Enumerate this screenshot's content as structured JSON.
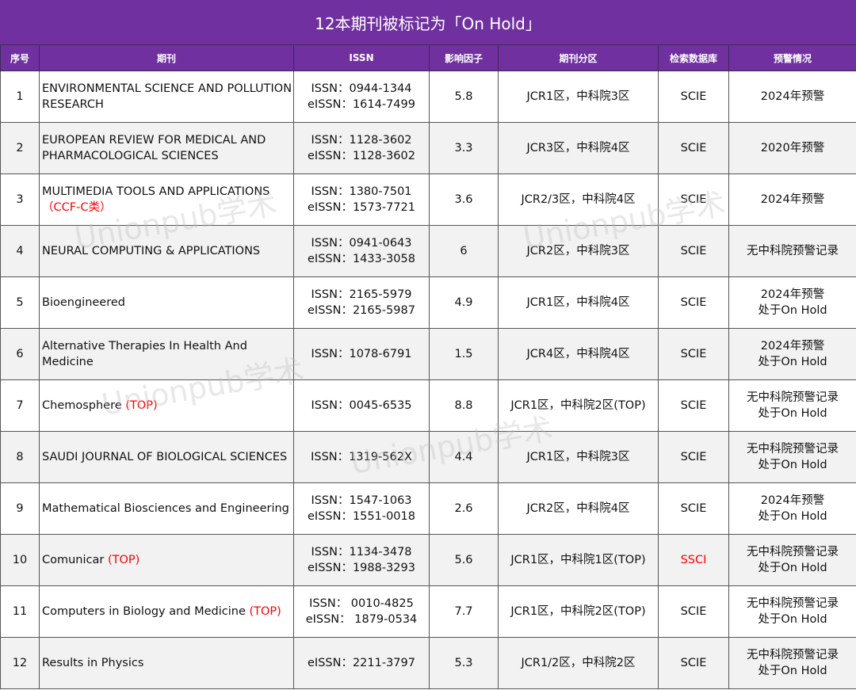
{
  "title": "12本期刊被标记为「On Hold」",
  "headers": {
    "no": "序号",
    "journal": "期刊",
    "issn": "ISSN",
    "impact": "影响因子",
    "zone": "期刊分区",
    "database": "检索数据库",
    "warning": "预警情况"
  },
  "rows": [
    {
      "no": "1",
      "journal": "ENVIRONMENTAL SCIENCE AND POLLUTION RESEARCH",
      "tag": "",
      "issn": "ISSN：0944-1344",
      "eissn": "eISSN：1614-7499",
      "impact": "5.8",
      "zone": "JCR1区，中科院3区",
      "database": "SCIE",
      "warning1": "2024年预警",
      "warning2": ""
    },
    {
      "no": "2",
      "journal": "EUROPEAN REVIEW FOR MEDICAL AND PHARMACOLOGICAL SCIENCES",
      "tag": "",
      "issn": "ISSN：1128-3602",
      "eissn": "eISSN：1128-3602",
      "impact": "3.3",
      "zone": "JCR3区，中科院4区",
      "database": "SCIE",
      "warning1": "2020年预警",
      "warning2": ""
    },
    {
      "no": "3",
      "journal": "MULTIMEDIA TOOLS AND APPLICATIONS",
      "tag": "（CCF-C类）",
      "issn": "ISSN：1380-7501",
      "eissn": "eISSN：1573-7721",
      "impact": "3.6",
      "zone": "JCR2/3区，中科院4区",
      "database": "SCIE",
      "warning1": "2024年预警",
      "warning2": ""
    },
    {
      "no": "4",
      "journal": "NEURAL COMPUTING & APPLICATIONS",
      "tag": "",
      "issn": "ISSN：0941-0643",
      "eissn": "eISSN：1433-3058",
      "impact": "6",
      "zone": "JCR2区，中科院3区",
      "database": "SCIE",
      "warning1": "无中科院预警记录",
      "warning2": ""
    },
    {
      "no": "5",
      "journal": "Bioengineered",
      "tag": "",
      "issn": "ISSN：2165-5979",
      "eissn": "eISSN：2165-5987",
      "impact": "4.9",
      "zone": "JCR1区，中科院4区",
      "database": "SCIE",
      "warning1": "2024年预警",
      "warning2": "处于On Hold"
    },
    {
      "no": "6",
      "journal": "Alternative Therapies In Health And Medicine",
      "tag": "",
      "issn": "ISSN：1078-6791",
      "eissn": "",
      "impact": "1.5",
      "zone": "JCR4区，中科院4区",
      "database": "SCIE",
      "warning1": "2024年预警",
      "warning2": "处于On Hold"
    },
    {
      "no": "7",
      "journal": "Chemosphere",
      "tag": "(TOP)",
      "issn": "ISSN：0045-6535",
      "eissn": "",
      "impact": "8.8",
      "zone": "JCR1区，中科院2区(TOP)",
      "database": "SCIE",
      "warning1": "无中科院预警记录",
      "warning2": "处于On Hold"
    },
    {
      "no": "8",
      "journal": "SAUDI JOURNAL OF BIOLOGICAL SCIENCES",
      "tag": "",
      "issn": "ISSN：1319-562X",
      "eissn": "",
      "impact": "4.4",
      "zone": "JCR1区，中科院3区",
      "database": "SCIE",
      "warning1": "无中科院预警记录",
      "warning2": "处于On Hold"
    },
    {
      "no": "9",
      "journal": "Mathematical Biosciences and Engineering",
      "tag": "",
      "issn": "ISSN：1547-1063",
      "eissn": "eISSN：1551-0018",
      "impact": "2.6",
      "zone": "JCR2区，中科院4区",
      "database": "SCIE",
      "warning1": "2024年预警",
      "warning2": "处于On Hold"
    },
    {
      "no": "10",
      "journal": "Comunicar",
      "tag": "(TOP)",
      "issn": "ISSN：1134-3478",
      "eissn": "eISSN：1988-3293",
      "impact": "5.6",
      "zone": "JCR1区，中科院1区(TOP)",
      "database": "SSCI",
      "warning1": "无中科院预警记录",
      "warning2": "处于On Hold"
    },
    {
      "no": "11",
      "journal": "Computers in Biology and Medicine",
      "tag": "(TOP)",
      "issn": "ISSN： 0010-4825",
      "eissn": "eISSN： 1879-0534",
      "impact": "7.7",
      "zone": "JCR1区，中科院2区(TOP)",
      "database": "SCIE",
      "warning1": "无中科院预警记录",
      "warning2": "处于On Hold"
    },
    {
      "no": "12",
      "journal": "Results in Physics",
      "tag": "",
      "issn": "",
      "eissn": "eISSN：2211-3797",
      "impact": "5.3",
      "zone": "JCR1/2区，中科院2区",
      "database": "SCIE",
      "warning1": "无中科院预警记录",
      "warning2": "处于On Hold"
    }
  ],
  "watermark": "Unionpub学术",
  "colors": {
    "header_bg": "#7030a0",
    "alt_row": "#f2f2f2",
    "highlight": "#ff0000"
  }
}
